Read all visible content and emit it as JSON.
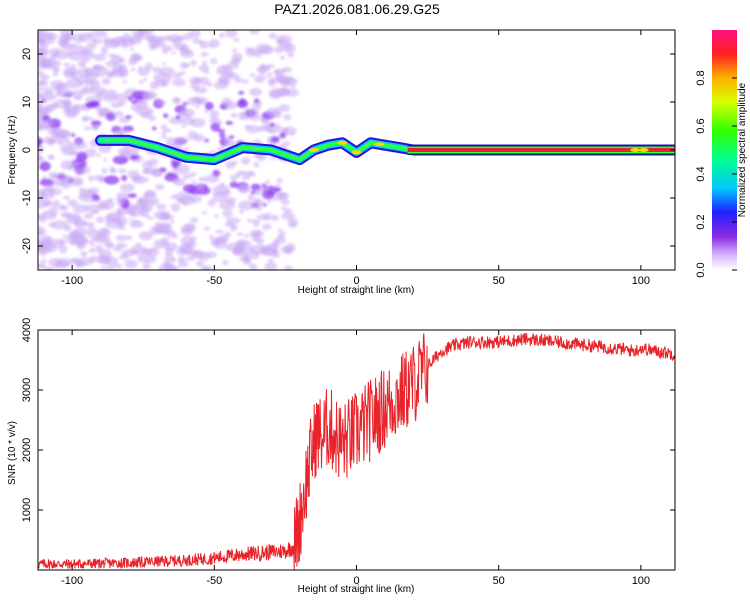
{
  "title": "PAZ1.2026.081.06.29.G25",
  "colors": {
    "snr_line": "#e8232a",
    "track_core": "#e8232a",
    "scatter": "#c9a8f4",
    "scatter_dense": "#8f3cf0"
  },
  "chart_data": [
    {
      "type": "heatmap",
      "xlabel": "Height of straight line (km)",
      "ylabel": "Frequency (Hz)",
      "xlim": [
        -112,
        112
      ],
      "ylim": [
        -25,
        25
      ],
      "xticks": [
        -100,
        -50,
        0,
        50,
        100
      ],
      "yticks": [
        -20,
        -10,
        0,
        10,
        20
      ],
      "colorbar": {
        "label": "Normalized spectral amplitude",
        "range": [
          0,
          1
        ],
        "ticks": [
          0.0,
          0.2,
          0.4,
          0.6,
          0.8
        ],
        "tick_labels": [
          "0.0",
          "0.2",
          "0.4",
          "0.6",
          "0.8"
        ]
      },
      "signal_track": [
        {
          "x": -90,
          "y": 2.0
        },
        {
          "x": -80,
          "y": 2.0
        },
        {
          "x": -70,
          "y": 0.5
        },
        {
          "x": -60,
          "y": -1.5
        },
        {
          "x": -50,
          "y": -2.0
        },
        {
          "x": -40,
          "y": 0.5
        },
        {
          "x": -30,
          "y": 0.0
        },
        {
          "x": -25,
          "y": -1.0
        },
        {
          "x": -20,
          "y": -2.0
        },
        {
          "x": -15,
          "y": 0.0
        },
        {
          "x": -10,
          "y": 1.0
        },
        {
          "x": -5,
          "y": 1.5
        },
        {
          "x": 0,
          "y": -0.5
        },
        {
          "x": 5,
          "y": 1.5
        },
        {
          "x": 10,
          "y": 1.0
        },
        {
          "x": 15,
          "y": 0.5
        },
        {
          "x": 20,
          "y": 0.0
        },
        {
          "x": 60,
          "y": 0.0
        },
        {
          "x": 112,
          "y": 0.0
        }
      ]
    },
    {
      "type": "line",
      "xlabel": "Height of straight line (km)",
      "ylabel": "SNR (10 * v/v)",
      "xlim": [
        -112,
        112
      ],
      "ylim": [
        0,
        4000
      ],
      "xticks": [
        -100,
        -50,
        0,
        50,
        100
      ],
      "yticks": [
        1000,
        2000,
        3000,
        4000
      ],
      "series": [
        {
          "x": [
            -112,
            -100,
            -90,
            -80,
            -70,
            -60,
            -50,
            -45,
            -40,
            -35,
            -30,
            -25,
            -22,
            -20,
            -18,
            -16,
            -14,
            -12,
            -10,
            -5,
            0,
            5,
            10,
            15,
            20,
            25,
            30,
            35,
            40,
            50,
            60,
            70,
            80,
            90,
            98,
            100,
            105,
            112
          ],
          "y": [
            100,
            100,
            110,
            120,
            140,
            160,
            200,
            230,
            260,
            280,
            300,
            320,
            400,
            800,
            1400,
            1900,
            2300,
            2200,
            2400,
            2100,
            2300,
            2500,
            2700,
            2900,
            3100,
            3400,
            3650,
            3750,
            3800,
            3800,
            3850,
            3800,
            3750,
            3700,
            3650,
            3700,
            3650,
            3600
          ]
        }
      ]
    }
  ]
}
